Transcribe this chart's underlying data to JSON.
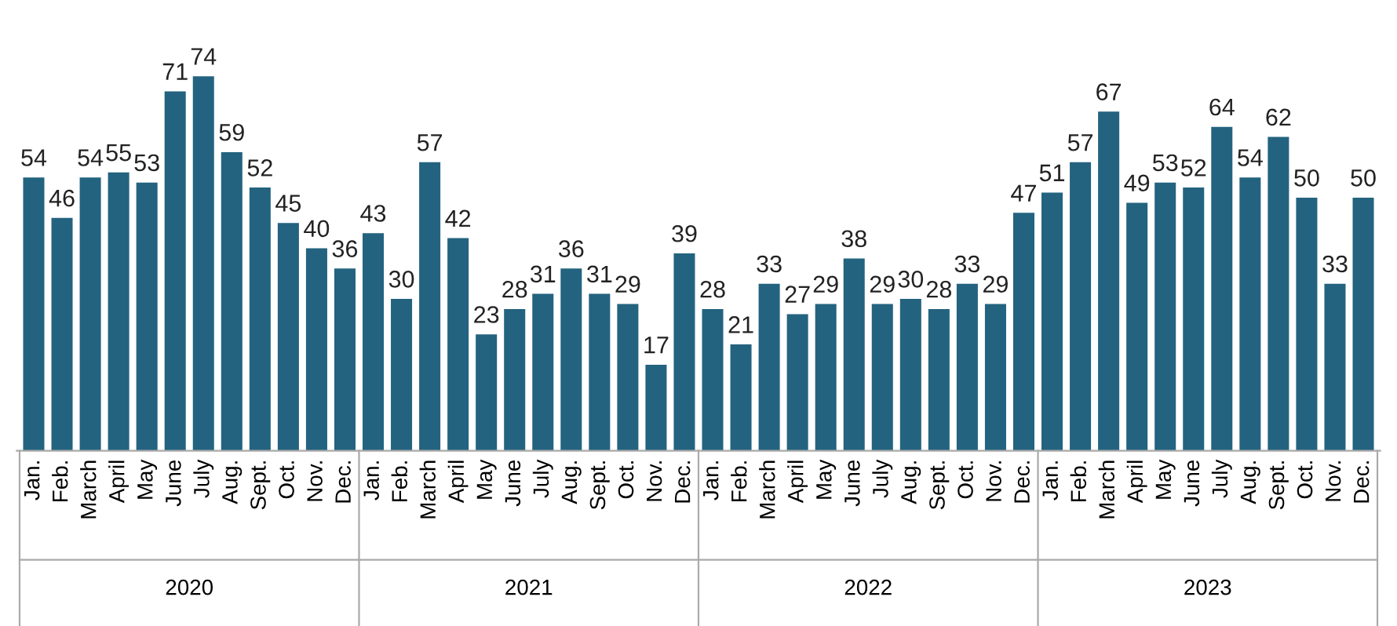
{
  "chart_data": {
    "type": "bar",
    "categories": [
      "Jan.",
      "Feb.",
      "March",
      "April",
      "May",
      "June",
      "July",
      "Aug.",
      "Sept.",
      "Oct.",
      "Nov.",
      "Dec.",
      "Jan.",
      "Feb.",
      "March",
      "April",
      "May",
      "June",
      "July",
      "Aug.",
      "Sept.",
      "Oct.",
      "Nov.",
      "Dec.",
      "Jan.",
      "Feb.",
      "March",
      "April",
      "May",
      "June",
      "July",
      "Aug.",
      "Sept.",
      "Oct.",
      "Nov.",
      "Dec.",
      "Jan.",
      "Feb.",
      "March",
      "April",
      "May",
      "June",
      "July",
      "Aug.",
      "Sept.",
      "Oct.",
      "Nov.",
      "Dec."
    ],
    "values": [
      54,
      46,
      54,
      55,
      53,
      71,
      74,
      59,
      52,
      45,
      40,
      36,
      43,
      30,
      57,
      42,
      23,
      28,
      31,
      36,
      31,
      29,
      17,
      39,
      28,
      21,
      33,
      27,
      29,
      38,
      29,
      30,
      28,
      33,
      29,
      47,
      51,
      57,
      67,
      49,
      53,
      52,
      64,
      54,
      62,
      50,
      33,
      50
    ],
    "color": "#23637f",
    "data_labels": true,
    "grid": false,
    "legend": false,
    "annotations": [
      "2020",
      "2021",
      "2022",
      "2023"
    ]
  }
}
